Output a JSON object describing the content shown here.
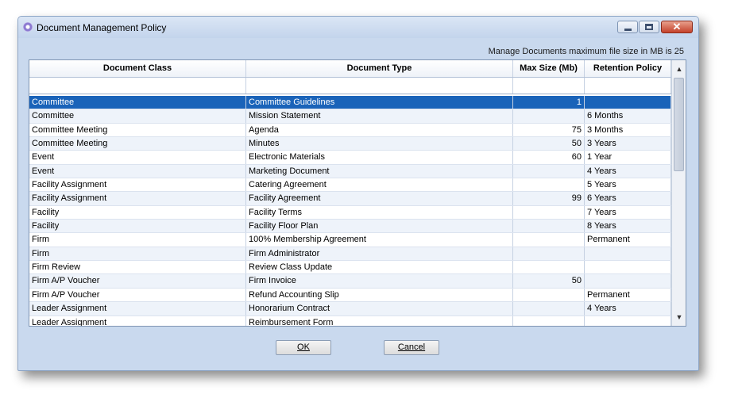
{
  "window": {
    "title": "Document Management Policy"
  },
  "info_text": "Manage Documents maximum file size in MB is 25",
  "columns": [
    "Document Class",
    "Document Type",
    "Max Size (Mb)",
    "Retention Policy"
  ],
  "rows": [
    [
      "Committee",
      "Committee Guidelines",
      "1",
      ""
    ],
    [
      "Committee",
      "Mission Statement",
      "",
      "6 Months"
    ],
    [
      "Committee Meeting",
      "Agenda",
      "75",
      "3 Months"
    ],
    [
      "Committee Meeting",
      "Minutes",
      "50",
      "3 Years"
    ],
    [
      "Event",
      "Electronic Materials",
      "60",
      "1 Year"
    ],
    [
      "Event",
      "Marketing Document",
      "",
      "4 Years"
    ],
    [
      "Facility Assignment",
      "Catering Agreement",
      "",
      "5 Years"
    ],
    [
      "Facility Assignment",
      "Facility Agreement",
      "99",
      "6 Years"
    ],
    [
      "Facility",
      "Facility Terms",
      "",
      "7 Years"
    ],
    [
      "Facility",
      "Facility Floor Plan",
      "",
      "8 Years"
    ],
    [
      "Firm",
      "100% Membership Agreement",
      "",
      "Permanent"
    ],
    [
      "Firm",
      "Firm Administrator",
      "",
      ""
    ],
    [
      "Firm Review",
      "Review Class Update",
      "",
      ""
    ],
    [
      "Firm A/P Voucher",
      "Firm Invoice",
      "50",
      ""
    ],
    [
      "Firm A/P Voucher",
      "Refund Accounting Slip",
      "",
      "Permanent"
    ],
    [
      "Leader Assignment",
      "Honorarium Contract",
      "",
      "4 Years"
    ],
    [
      "Leader Assignment",
      "Reimbursement Form",
      "",
      ""
    ]
  ],
  "selected_row": 0,
  "buttons": {
    "ok": "OK",
    "cancel": "Cancel"
  },
  "icons": {
    "app": "app-icon",
    "minimize": "minimize-icon",
    "maximize": "maximize-icon",
    "close": "close-icon",
    "scroll_up": "scroll-up-arrow-icon",
    "scroll_down": "scroll-down-arrow-icon"
  }
}
